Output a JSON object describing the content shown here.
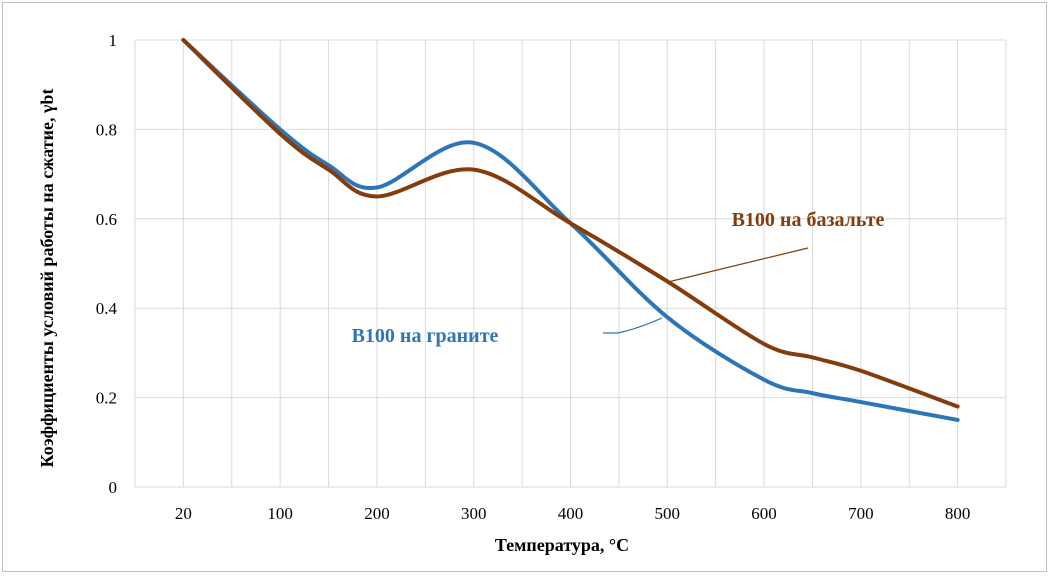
{
  "chart_data": {
    "type": "line",
    "x": [
      20,
      100,
      200,
      300,
      400,
      500,
      600,
      700,
      800
    ],
    "xlabel": "Температура, °С",
    "ylabel": "Коэффициенты условий работы на сжатие, γbt",
    "ylim": [
      0,
      1
    ],
    "yticks": [
      "0",
      "0.2",
      "0.4",
      "0.6",
      "0.8",
      "1"
    ],
    "xticks": [
      "20",
      "100",
      "200",
      "300",
      "400",
      "500",
      "600",
      "700",
      "800"
    ],
    "grid": true,
    "series": [
      {
        "name": "В100 на базальте",
        "color": "#843c0c",
        "points": [
          [
            20,
            1.0
          ],
          [
            100,
            0.79
          ],
          [
            150,
            0.71
          ],
          [
            200,
            0.65
          ],
          [
            300,
            0.71
          ],
          [
            400,
            0.59
          ],
          [
            500,
            0.46
          ],
          [
            600,
            0.32
          ],
          [
            650,
            0.29
          ],
          [
            700,
            0.26
          ],
          [
            800,
            0.18
          ]
        ]
      },
      {
        "name": "В100 на граните",
        "color": "#2e75b6",
        "points": [
          [
            20,
            1.0
          ],
          [
            100,
            0.8
          ],
          [
            150,
            0.72
          ],
          [
            200,
            0.67
          ],
          [
            300,
            0.77
          ],
          [
            400,
            0.59
          ],
          [
            500,
            0.38
          ],
          [
            600,
            0.24
          ],
          [
            650,
            0.21
          ],
          [
            700,
            0.19
          ],
          [
            800,
            0.15
          ]
        ]
      }
    ]
  }
}
